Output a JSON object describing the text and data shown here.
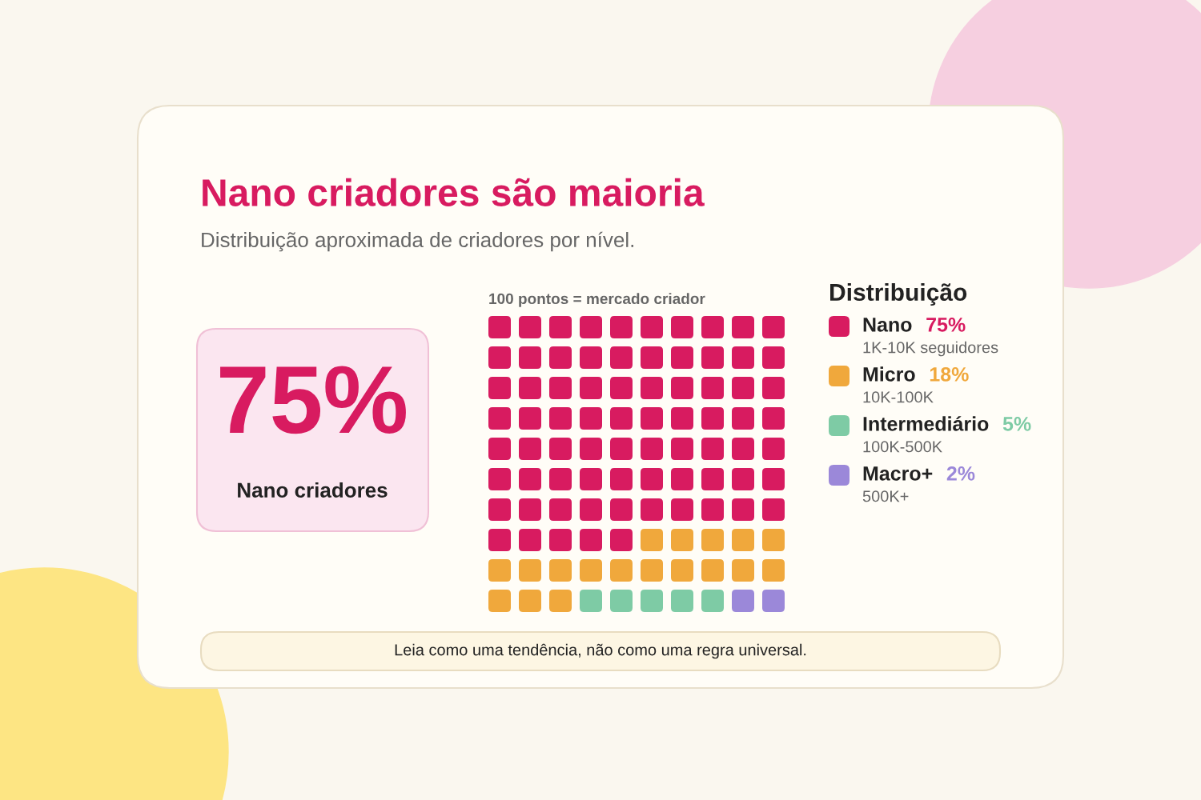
{
  "chart_data": {
    "type": "other",
    "title": "Nano criadores são maioria",
    "subtitle": "Distribuição aproximada de criadores por nível.",
    "categories": [
      "Nano",
      "Micro",
      "Intermediário",
      "Macro+"
    ],
    "values": [
      75,
      18,
      5,
      2
    ],
    "colors": [
      "#d81b60",
      "#f0a83c",
      "#7ecba5",
      "#9b88d9"
    ],
    "value_labels": [
      "75%",
      "18%",
      "5%",
      "2%"
    ],
    "legend_title": "Distribuição",
    "annotations": [
      "75%",
      "Nano criadores",
      "100 pontos = mercado criador",
      "1K-10K seguidores",
      "10K-100K",
      "100K-500K",
      "500K+",
      "Leia como uma tendência, não como uma regra universal."
    ]
  }
}
